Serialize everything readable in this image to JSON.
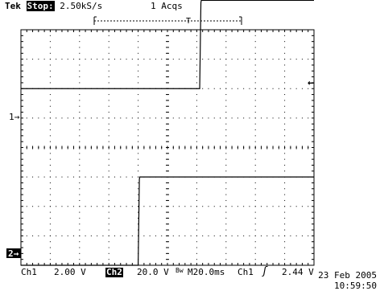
{
  "header": {
    "brand": "Tek",
    "state": "Stop:",
    "sample_rate": "2.50kS/s",
    "acquisitions": "1 Acqs"
  },
  "screen": {
    "trigger_level_marker": "←",
    "ch1_marker": "1→",
    "ch2_marker": "2→",
    "trigger_position_marker": "T"
  },
  "footer": {
    "ch1_label": "Ch1",
    "ch1_scale": "2.00 V",
    "ch2_label": "Ch2",
    "ch2_scale": "20.0 V",
    "bw_symbol": "Bw",
    "timebase": "M20.0ms",
    "trigger_source": "Ch1",
    "trigger_slope": "ʃ",
    "trigger_level": "2.44 V"
  },
  "timestamp": {
    "date": "23 Feb 2005",
    "time": "10:59:50"
  },
  "traces": {
    "ch1": {
      "low_division": 2.0,
      "high_division": 5.0,
      "edge_time_division": 6.1
    },
    "ch2": {
      "low_division": -4.0,
      "high_division": -1.0,
      "edge_time_division": 4.0
    }
  },
  "colors": {
    "trace": "#000000",
    "grid": "#000000",
    "background": "#ffffff"
  }
}
